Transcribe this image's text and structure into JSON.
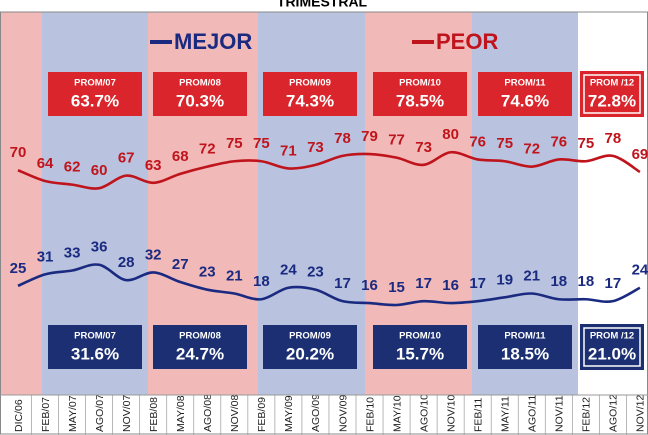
{
  "chart_data": {
    "type": "line",
    "title": "TRIMESTRAL",
    "categories": [
      "DIC/06",
      "FEB/07",
      "MAY/07",
      "AGO/07",
      "NOV/07",
      "FEB/08",
      "MAY/08",
      "AGO/08",
      "NOV/08",
      "FEB/09",
      "MAY/09",
      "AGO/09",
      "NOV/09",
      "FEB/10",
      "MAY/10",
      "AGO/10",
      "NOV/10",
      "FEB/11",
      "MAY/11",
      "AGO/11",
      "NOV/11",
      "FEB/12",
      "AGO/12",
      "NOV/12"
    ],
    "series": [
      {
        "name": "MEJOR",
        "color": "#1a2a80",
        "axis": "y2",
        "values": [
          25,
          31,
          33,
          36,
          28,
          32,
          27,
          23,
          21,
          18,
          24,
          23,
          17,
          16,
          15,
          17,
          16,
          17,
          19,
          21,
          18,
          18,
          17,
          24
        ]
      },
      {
        "name": "PEOR",
        "color": "#c0141c",
        "values": [
          70,
          64,
          62,
          60,
          67,
          63,
          68,
          72,
          75,
          75,
          71,
          73,
          78,
          79,
          77,
          73,
          80,
          76,
          75,
          72,
          76,
          75,
          78,
          69
        ]
      }
    ],
    "ylim": [
      -55,
      158
    ],
    "y2lim": [
      -32,
      168
    ],
    "averages": [
      {
        "label": "PROM/07",
        "PEOR": "63.7%",
        "MEJOR": "31.6%"
      },
      {
        "label": "PROM/08",
        "PEOR": "70.3%",
        "MEJOR": "24.7%"
      },
      {
        "label": "PROM/09",
        "PEOR": "74.3%",
        "MEJOR": "20.2%"
      },
      {
        "label": "PROM/10",
        "PEOR": "78.5%",
        "MEJOR": "15.7%"
      },
      {
        "label": "PROM/11",
        "PEOR": "74.6%",
        "MEJOR": "18.5%"
      },
      {
        "label": "PROM /12",
        "PEOR": "72.8%",
        "MEJOR": "21.0%"
      }
    ]
  }
}
